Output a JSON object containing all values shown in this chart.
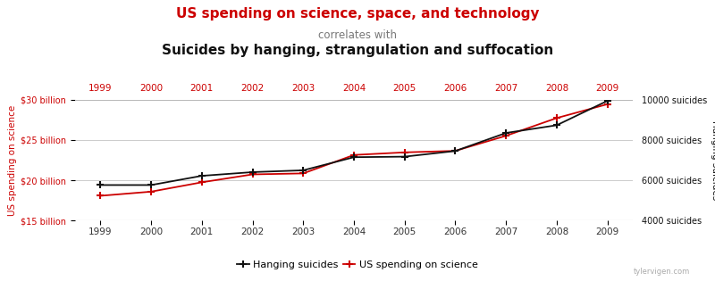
{
  "years": [
    1999,
    2000,
    2001,
    2002,
    2003,
    2004,
    2005,
    2006,
    2007,
    2008,
    2009
  ],
  "science_spending_billions": [
    18.079,
    18.592,
    19.753,
    20.734,
    20.858,
    23.146,
    23.47,
    23.655,
    25.53,
    27.732,
    29.449
  ],
  "hanging_suicides": [
    5765,
    5765,
    6223,
    6406,
    6497,
    7148,
    7175,
    7456,
    8352,
    8736,
    9946
  ],
  "title_line1": "US spending on science, space, and technology",
  "title_line2": "correlates with",
  "title_line3": "Suicides by hanging, strangulation and suffocation",
  "ylabel_left": "US spending on science",
  "ylabel_right": "Hanging suicides",
  "color_science": "#cc0000",
  "color_suicides": "#111111",
  "color_title1": "#cc0000",
  "color_title2": "#777777",
  "color_title3": "#111111",
  "ylim_left": [
    15000000000,
    30000000000
  ],
  "ylim_right": [
    4000,
    10000
  ],
  "yticks_left": [
    15000000000,
    20000000000,
    25000000000,
    30000000000
  ],
  "yticks_right": [
    4000,
    6000,
    8000,
    10000
  ],
  "ytick_labels_left": [
    "$15 billion",
    "$20 billion",
    "$25 billion",
    "$30 billion"
  ],
  "ytick_labels_right": [
    "4000 suicides",
    "6000 suicides",
    "8000 suicides",
    "10000 suicides"
  ],
  "watermark": "tylervigen.com",
  "legend_suicides": "Hanging suicides",
  "legend_science": "US spending on science",
  "background_color": "#ffffff",
  "grid_color": "#cccccc",
  "xlim": [
    1998.5,
    2009.5
  ]
}
